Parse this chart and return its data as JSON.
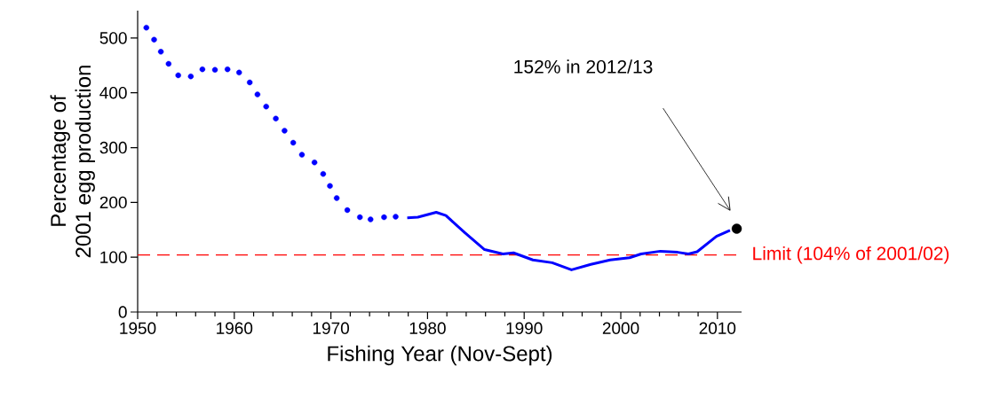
{
  "chart_data": {
    "type": "line",
    "xlabel": "Fishing Year (Nov-Sept)",
    "ylabel": "Percentage of\n2001 egg production",
    "xlim": [
      1950,
      2012.5
    ],
    "ylim": [
      0,
      550
    ],
    "xticks": [
      1950,
      1960,
      1970,
      1980,
      1990,
      2000,
      2010
    ],
    "yticks": [
      0,
      100,
      200,
      300,
      400,
      500
    ],
    "series": [
      {
        "type": "scatter",
        "marker": "circle",
        "color": "#0000ff",
        "x": [
          1950.9,
          1951.7,
          1952.4,
          1953.2,
          1954.2,
          1955.5,
          1956.7,
          1958.0,
          1959.3,
          1960.5,
          1961.6,
          1962.4,
          1963.3,
          1964.3,
          1965.2,
          1966.1,
          1967.0,
          1968.3,
          1969.2,
          1969.9,
          1970.6,
          1971.7,
          1973.0,
          1974.1,
          1975.5,
          1976.7
        ],
        "values": [
          519,
          497,
          475,
          453,
          432,
          430,
          443,
          442,
          443,
          437,
          419,
          397,
          375,
          353,
          331,
          309,
          287,
          273,
          252,
          230,
          208,
          186,
          173,
          169,
          173,
          174
        ]
      },
      {
        "marker": "none",
        "line_style": "solid",
        "color": "#0000ff",
        "x": [
          1977.9,
          1979.0,
          1980.9,
          1981.9,
          1983.9,
          1985.9,
          1987.8,
          1988.9,
          1990.9,
          1992.9,
          1994.9,
          1996.9,
          1998.9,
          2000.9,
          2002.1,
          2004.1,
          2005.9,
          2007.0,
          2007.9,
          2009.9,
          2011.3
        ],
        "values": [
          172,
          173,
          182,
          176,
          144,
          114,
          106,
          108,
          95,
          90,
          77,
          87,
          95,
          99,
          106,
          111,
          109,
          106,
          110,
          138,
          149
        ]
      },
      {
        "type": "scatter",
        "marker": "circle",
        "color": "#000000",
        "x": [
          2012
        ],
        "values": [
          152
        ]
      }
    ],
    "ref_lines": [
      {
        "axis": "y",
        "value": 104,
        "label": "Limit (104% of 2001/02)",
        "color": "#ff0000",
        "line_style": "dashed"
      }
    ],
    "annotations": [
      "152% in 2012/13"
    ]
  }
}
